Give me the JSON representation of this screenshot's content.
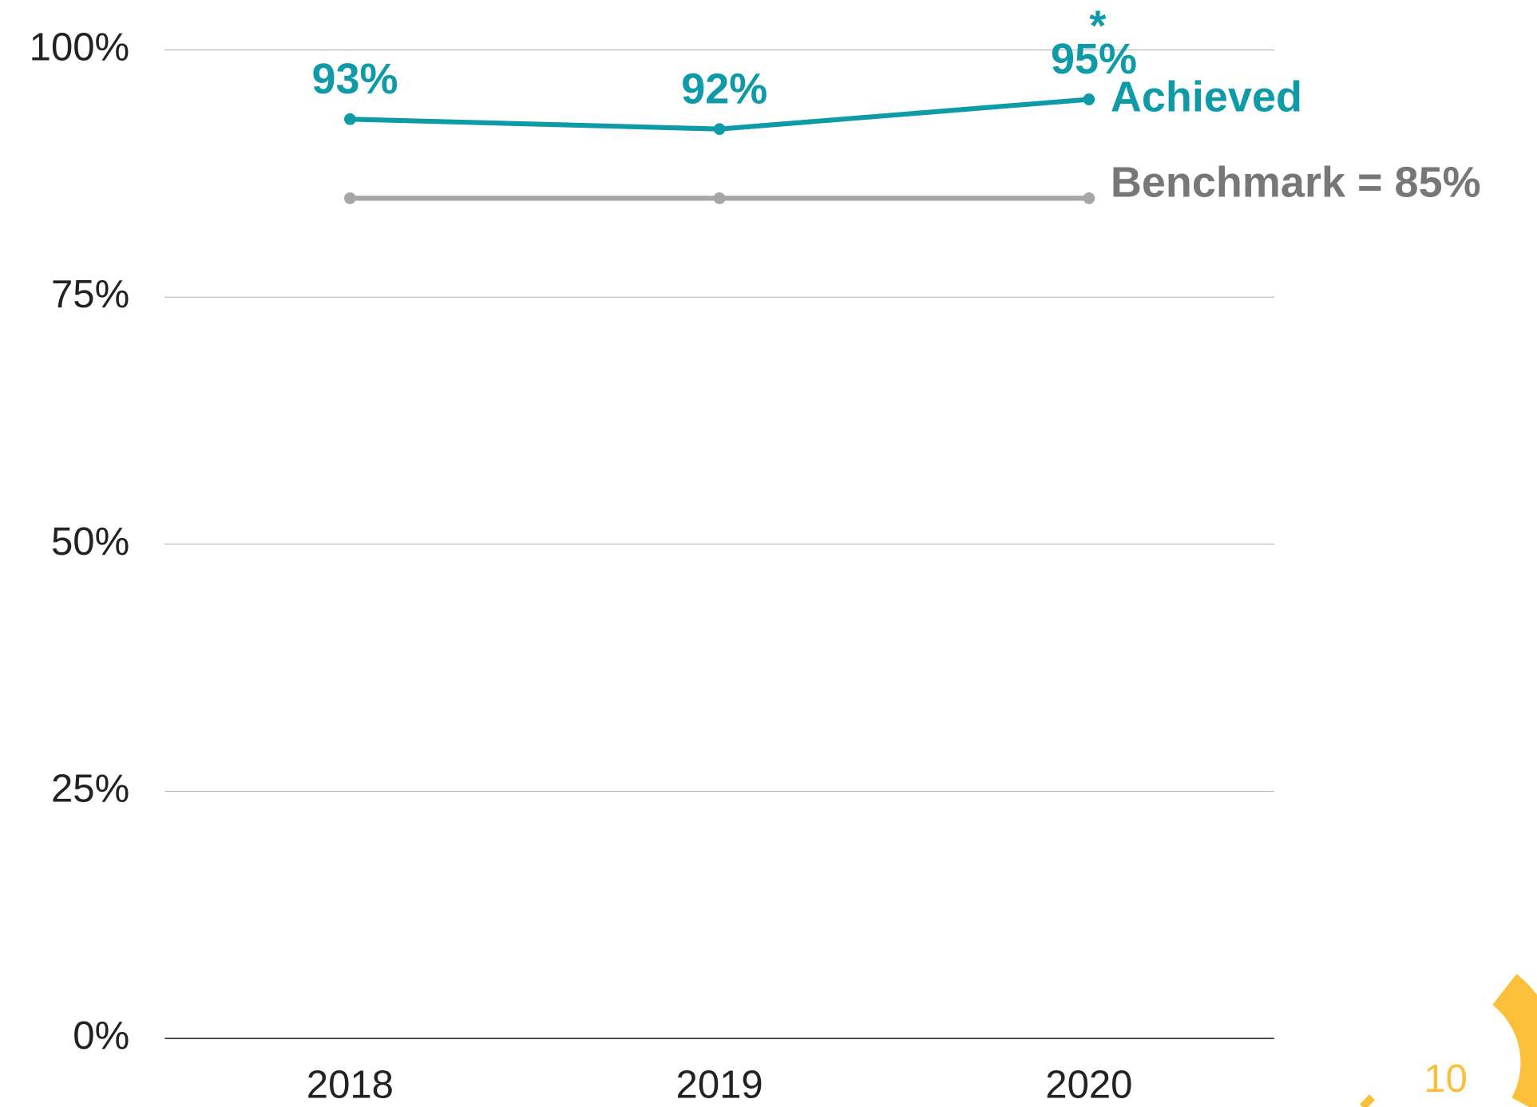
{
  "chart_data": {
    "type": "line",
    "categories": [
      "2018",
      "2019",
      "2020"
    ],
    "series": [
      {
        "name": "Achieved",
        "color": "#0e9aa7",
        "values": [
          93,
          92,
          95
        ],
        "value_labels": [
          "93%",
          "92%",
          "95%"
        ]
      },
      {
        "name": "Benchmark = 85%",
        "color": "#a6a6a6",
        "values": [
          85,
          85,
          85
        ]
      }
    ],
    "annotation": "*",
    "ylim": [
      0,
      100
    ],
    "yticks": [
      {
        "value": 0,
        "label": "0%"
      },
      {
        "value": 25,
        "label": "25%"
      },
      {
        "value": 50,
        "label": "50%"
      },
      {
        "value": 75,
        "label": "75%"
      },
      {
        "value": 100,
        "label": "100%"
      }
    ],
    "grid": true
  },
  "page_number": "10"
}
